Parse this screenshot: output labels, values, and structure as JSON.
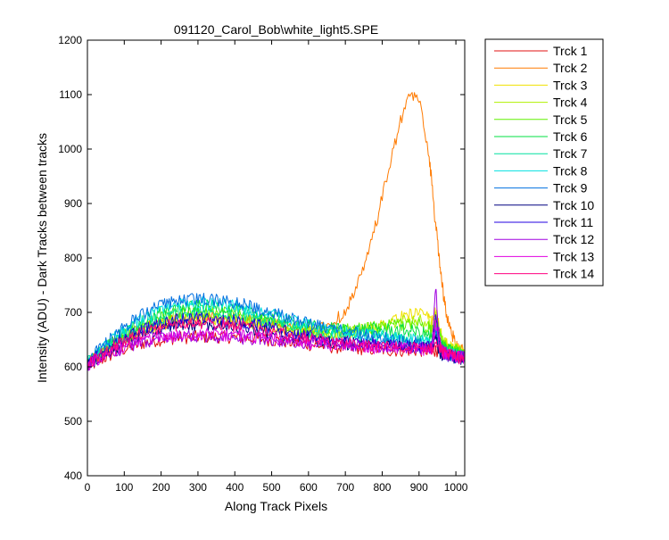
{
  "chart_data": {
    "type": "line",
    "title": "091120_Carol_Bob\\white_light5.SPE",
    "xlabel": "Along Track Pixels",
    "ylabel": "Intensity (ADU) - Dark Tracks between tracks",
    "xlim": [
      0,
      1024
    ],
    "ylim": [
      400,
      1200
    ],
    "xticks": [
      0,
      100,
      200,
      300,
      400,
      500,
      600,
      700,
      800,
      900,
      1000
    ],
    "yticks": [
      400,
      500,
      600,
      700,
      800,
      900,
      1000,
      1100,
      1200
    ],
    "grid": false,
    "legend_position": "outside-right",
    "x": [
      0,
      25,
      50,
      75,
      100,
      125,
      150,
      175,
      200,
      225,
      250,
      275,
      300,
      325,
      350,
      375,
      400,
      425,
      450,
      475,
      500,
      525,
      550,
      575,
      600,
      625,
      650,
      675,
      700,
      725,
      750,
      775,
      800,
      825,
      850,
      875,
      900,
      925,
      935,
      945,
      955,
      965,
      975,
      990,
      1000,
      1010,
      1024
    ],
    "series": [
      {
        "name": "Trck 1",
        "color": "#e01010",
        "values": [
          598,
          608,
          617,
          625,
          632,
          638,
          643,
          647,
          650,
          652,
          653,
          654,
          655,
          655,
          655,
          655,
          654,
          653,
          652,
          651,
          649,
          647,
          645,
          643,
          641,
          639,
          637,
          636,
          635,
          634,
          633,
          632,
          631,
          630,
          630,
          630,
          630,
          630,
          630,
          630,
          630,
          630,
          629,
          628,
          627,
          626,
          625
        ]
      },
      {
        "name": "Trck 2",
        "color": "#ff7a00",
        "values": [
          605,
          618,
          630,
          642,
          652,
          661,
          669,
          676,
          682,
          686,
          689,
          690,
          691,
          691,
          690,
          689,
          688,
          686,
          684,
          682,
          679,
          676,
          673,
          670,
          668,
          668,
          672,
          685,
          705,
          735,
          780,
          840,
          910,
          985,
          1050,
          1100,
          1090,
          1000,
          935,
          860,
          800,
          740,
          690,
          660,
          645,
          635,
          628
        ]
      },
      {
        "name": "Trck 3",
        "color": "#f0e000",
        "values": [
          606,
          618,
          629,
          640,
          650,
          659,
          666,
          672,
          677,
          681,
          684,
          686,
          687,
          687,
          686,
          685,
          684,
          682,
          680,
          678,
          675,
          672,
          669,
          666,
          664,
          662,
          661,
          661,
          662,
          664,
          668,
          673,
          678,
          684,
          690,
          698,
          700,
          688,
          680,
          700,
          670,
          648,
          640,
          635,
          632,
          629,
          626
        ]
      },
      {
        "name": "Trck 4",
        "color": "#b0f000",
        "values": [
          607,
          619,
          631,
          642,
          652,
          661,
          669,
          675,
          680,
          684,
          687,
          689,
          690,
          690,
          689,
          688,
          686,
          684,
          682,
          679,
          676,
          673,
          670,
          667,
          665,
          663,
          662,
          662,
          663,
          665,
          668,
          671,
          675,
          679,
          683,
          687,
          686,
          678,
          672,
          690,
          665,
          645,
          638,
          634,
          631,
          628,
          625
        ]
      },
      {
        "name": "Trck 5",
        "color": "#60f000",
        "values": [
          608,
          621,
          634,
          646,
          657,
          667,
          676,
          684,
          690,
          695,
          698,
          700,
          701,
          701,
          700,
          698,
          696,
          693,
          690,
          687,
          683,
          679,
          675,
          672,
          669,
          667,
          666,
          666,
          667,
          668,
          670,
          672,
          674,
          676,
          678,
          680,
          679,
          672,
          666,
          685,
          660,
          642,
          636,
          632,
          630,
          627,
          624
        ]
      },
      {
        "name": "Trck 6",
        "color": "#00e040",
        "values": [
          609,
          623,
          637,
          650,
          662,
          673,
          683,
          692,
          699,
          704,
          708,
          710,
          711,
          711,
          710,
          708,
          705,
          702,
          699,
          695,
          691,
          687,
          683,
          679,
          676,
          673,
          671,
          670,
          669,
          669,
          669,
          669,
          669,
          668,
          667,
          666,
          664,
          658,
          652,
          675,
          650,
          636,
          631,
          628,
          626,
          624,
          622
        ]
      },
      {
        "name": "Trck 7",
        "color": "#00e0a0",
        "values": [
          607,
          620,
          633,
          645,
          656,
          666,
          675,
          683,
          689,
          694,
          697,
          699,
          700,
          700,
          699,
          697,
          695,
          692,
          689,
          685,
          681,
          677,
          673,
          669,
          666,
          663,
          661,
          659,
          658,
          657,
          656,
          655,
          654,
          653,
          652,
          651,
          649,
          645,
          641,
          668,
          640,
          630,
          626,
          624,
          622,
          620,
          619
        ]
      },
      {
        "name": "Trck 8",
        "color": "#00e0e0",
        "values": [
          610,
          625,
          640,
          654,
          667,
          679,
          690,
          699,
          706,
          711,
          715,
          717,
          718,
          718,
          717,
          715,
          712,
          708,
          704,
          700,
          695,
          690,
          685,
          681,
          677,
          673,
          670,
          667,
          664,
          662,
          660,
          658,
          656,
          654,
          652,
          650,
          648,
          643,
          638,
          672,
          636,
          627,
          624,
          622,
          621,
          619,
          618
        ]
      },
      {
        "name": "Trck 9",
        "color": "#0070e0",
        "values": [
          611,
          627,
          643,
          658,
          672,
          685,
          696,
          705,
          712,
          717,
          721,
          723,
          724,
          724,
          723,
          721,
          718,
          714,
          710,
          705,
          700,
          695,
          690,
          685,
          680,
          676,
          672,
          668,
          665,
          662,
          659,
          656,
          653,
          650,
          648,
          646,
          644,
          639,
          635,
          670,
          632,
          624,
          621,
          619,
          618,
          617,
          616
        ]
      },
      {
        "name": "Trck 10",
        "color": "#000080",
        "values": [
          604,
          615,
          626,
          636,
          645,
          653,
          660,
          666,
          670,
          673,
          675,
          676,
          676,
          676,
          675,
          674,
          672,
          670,
          668,
          665,
          662,
          659,
          656,
          653,
          650,
          648,
          646,
          644,
          643,
          642,
          641,
          640,
          639,
          638,
          637,
          636,
          635,
          633,
          631,
          660,
          628,
          622,
          620,
          618,
          617,
          616,
          615
        ]
      },
      {
        "name": "Trck 11",
        "color": "#2000e0",
        "values": [
          606,
          618,
          630,
          641,
          651,
          660,
          668,
          674,
          679,
          683,
          686,
          688,
          689,
          689,
          688,
          686,
          684,
          681,
          678,
          675,
          671,
          667,
          663,
          659,
          656,
          653,
          650,
          648,
          646,
          644,
          643,
          642,
          641,
          640,
          639,
          638,
          637,
          636,
          635,
          700,
          640,
          626,
          622,
          620,
          618,
          617,
          616
        ]
      },
      {
        "name": "Trck 12",
        "color": "#a000e0",
        "values": [
          603,
          612,
          620,
          628,
          634,
          640,
          645,
          649,
          652,
          654,
          655,
          656,
          656,
          656,
          656,
          655,
          654,
          653,
          652,
          651,
          650,
          648,
          647,
          646,
          645,
          644,
          643,
          642,
          641,
          640,
          639,
          638,
          637,
          636,
          635,
          635,
          634,
          634,
          636,
          745,
          650,
          630,
          625,
          622,
          620,
          618,
          617
        ]
      },
      {
        "name": "Trck 13",
        "color": "#e000e0",
        "values": [
          604,
          613,
          622,
          630,
          637,
          643,
          648,
          652,
          655,
          657,
          659,
          660,
          660,
          660,
          660,
          659,
          658,
          657,
          656,
          654,
          652,
          650,
          648,
          646,
          644,
          642,
          641,
          640,
          639,
          638,
          637,
          636,
          635,
          634,
          634,
          633,
          633,
          632,
          633,
          680,
          640,
          627,
          623,
          621,
          619,
          617,
          616
        ]
      },
      {
        "name": "Trck 14",
        "color": "#ff0080",
        "values": [
          606,
          617,
          628,
          638,
          647,
          655,
          662,
          668,
          673,
          676,
          678,
          679,
          679,
          679,
          678,
          677,
          675,
          673,
          670,
          667,
          664,
          661,
          658,
          655,
          652,
          649,
          647,
          645,
          643,
          641,
          640,
          639,
          638,
          637,
          636,
          635,
          634,
          633,
          632,
          650,
          633,
          626,
          622,
          620,
          618,
          617,
          616
        ]
      }
    ]
  }
}
